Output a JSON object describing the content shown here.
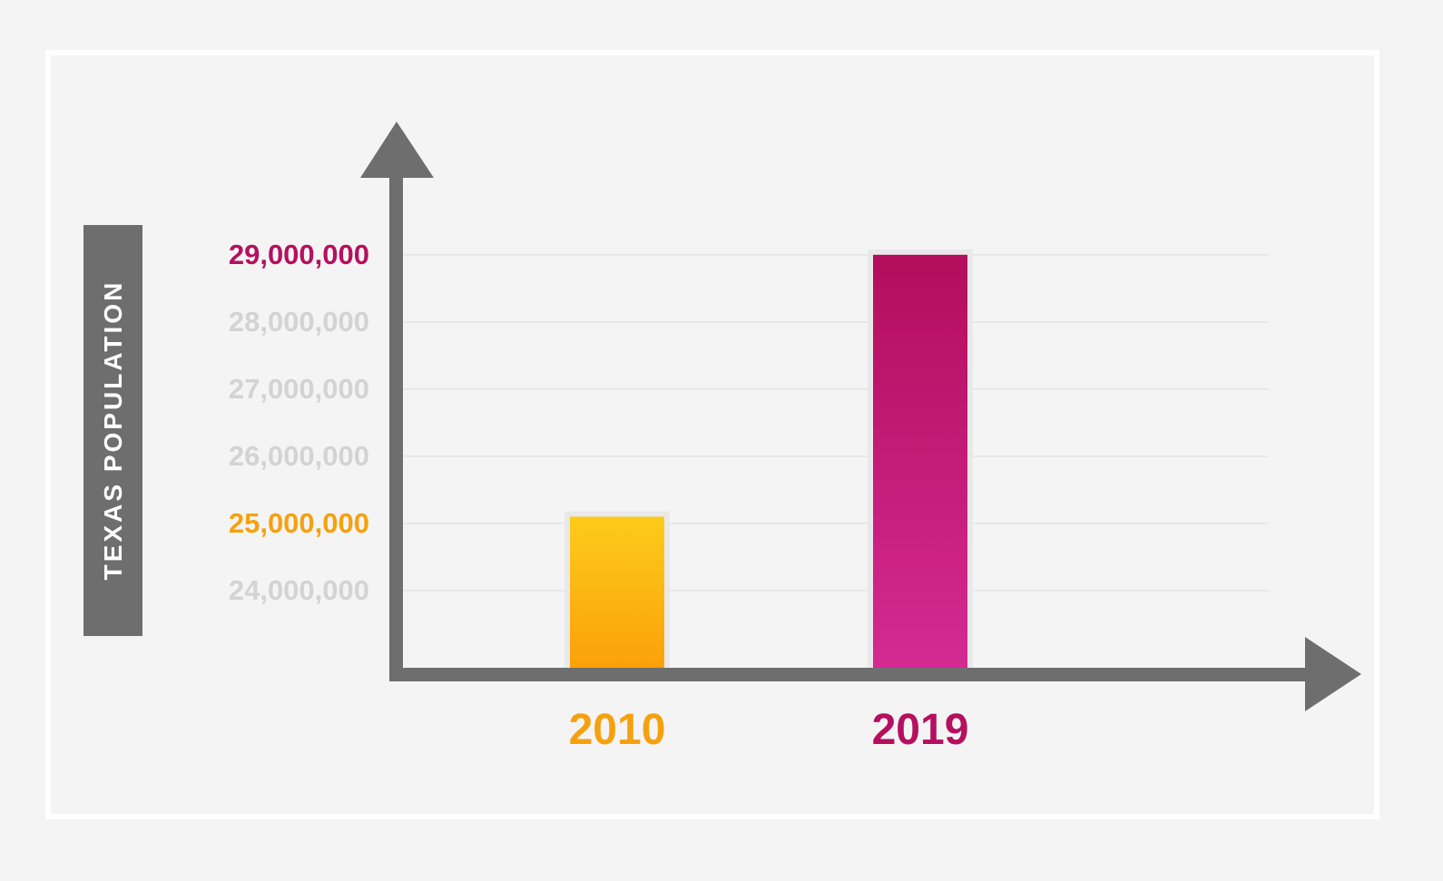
{
  "chart_data": {
    "type": "bar",
    "ylabel": "TEXAS POPULATION",
    "categories": [
      "2010",
      "2019"
    ],
    "values": [
      25100000,
      29000000
    ],
    "ylim": [
      22850000,
      30200000
    ],
    "yticks": [
      {
        "value": 29000000,
        "label": "29,000,000",
        "highlight": "magenta"
      },
      {
        "value": 28000000,
        "label": "28,000,000",
        "highlight": null
      },
      {
        "value": 27000000,
        "label": "27,000,000",
        "highlight": null
      },
      {
        "value": 26000000,
        "label": "26,000,000",
        "highlight": null
      },
      {
        "value": 25000000,
        "label": "25,000,000",
        "highlight": "orange"
      },
      {
        "value": 24000000,
        "label": "24,000,000",
        "highlight": null
      }
    ],
    "grid": true,
    "legend": "none"
  },
  "colors": {
    "background": "#f4f4f4",
    "frame": "#ffffff",
    "axis": "#6e6e6e",
    "gridline": "#dcdcdc",
    "tick_muted": "#d3d3d3",
    "orange": "#f5a10f",
    "magenta": "#b5105f",
    "bar_2010_top": "#fdcb1b",
    "bar_2010_bottom": "#fba10a",
    "bar_2019_top": "#b30d5d",
    "bar_2019_bottom": "#d42a92",
    "label_box": "#6e6e6e"
  }
}
